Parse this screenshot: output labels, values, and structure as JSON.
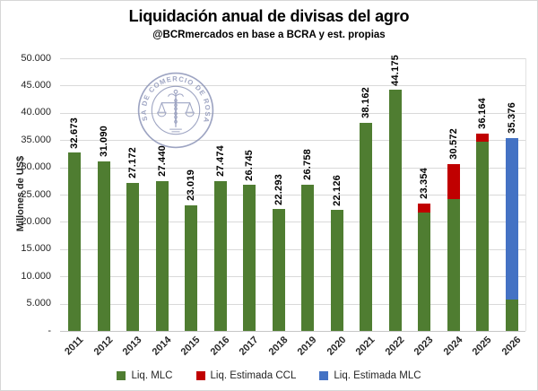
{
  "header": {
    "title": "Liquidación anual de divisas del agro",
    "subtitle": "@BCRmercados en base a BCRA y est. propias"
  },
  "y_axis": {
    "title": "Millones de US$",
    "ticks": [
      "50.000",
      "45.000",
      "40.000",
      "35.000",
      "30.000",
      "25.000",
      "20.000",
      "15.000",
      "10.000",
      "5.000",
      "-"
    ]
  },
  "watermark": {
    "text": "BOLSA DE COMERCIO DE ROSARIO"
  },
  "legend": [
    {
      "label": "Liq. MLC",
      "color": "#4f7d31"
    },
    {
      "label": "Liq. Estimada CCL",
      "color": "#c00000"
    },
    {
      "label": "Liq. Estimada MLC",
      "color": "#4472c4"
    }
  ],
  "chart_data": {
    "type": "bar",
    "stacked": true,
    "title": "Liquidación anual de divisas del agro",
    "subtitle": "@BCRmercados en base a BCRA y est. propias",
    "ylabel": "Millones de US$",
    "ylim": [
      0,
      50000
    ],
    "grid": true,
    "legend_position": "bottom",
    "categories": [
      "2011",
      "2012",
      "2013",
      "2014",
      "2015",
      "2016",
      "2017",
      "2018",
      "2019",
      "2020",
      "2021",
      "2022",
      "2023",
      "2024",
      "2025",
      "2026"
    ],
    "series": [
      {
        "name": "Liq. MLC",
        "color": "#4f7d31",
        "values": [
          32673,
          31090,
          27172,
          27440,
          23019,
          27474,
          26745,
          22293,
          26758,
          22126,
          38162,
          44175,
          21700,
          24100,
          34700,
          5800
        ]
      },
      {
        "name": "Liq. Estimada CCL",
        "color": "#c00000",
        "values": [
          0,
          0,
          0,
          0,
          0,
          0,
          0,
          0,
          0,
          0,
          0,
          0,
          1654,
          6472,
          1464,
          0
        ]
      },
      {
        "name": "Liq. Estimada MLC",
        "color": "#4472c4",
        "values": [
          0,
          0,
          0,
          0,
          0,
          0,
          0,
          0,
          0,
          0,
          0,
          0,
          0,
          0,
          0,
          29576
        ]
      }
    ],
    "totals": [
      32673,
      31090,
      27172,
      27440,
      23019,
      27474,
      26745,
      22293,
      26758,
      22126,
      38162,
      44175,
      23354,
      30572,
      36164,
      35376
    ],
    "total_labels": [
      "32.673",
      "31.090",
      "27.172",
      "27.440",
      "23.019",
      "27.474",
      "26.745",
      "22.293",
      "26.758",
      "22.126",
      "38.162",
      "44.175",
      "23.354",
      "30.572",
      "36.164",
      "35.376"
    ]
  }
}
